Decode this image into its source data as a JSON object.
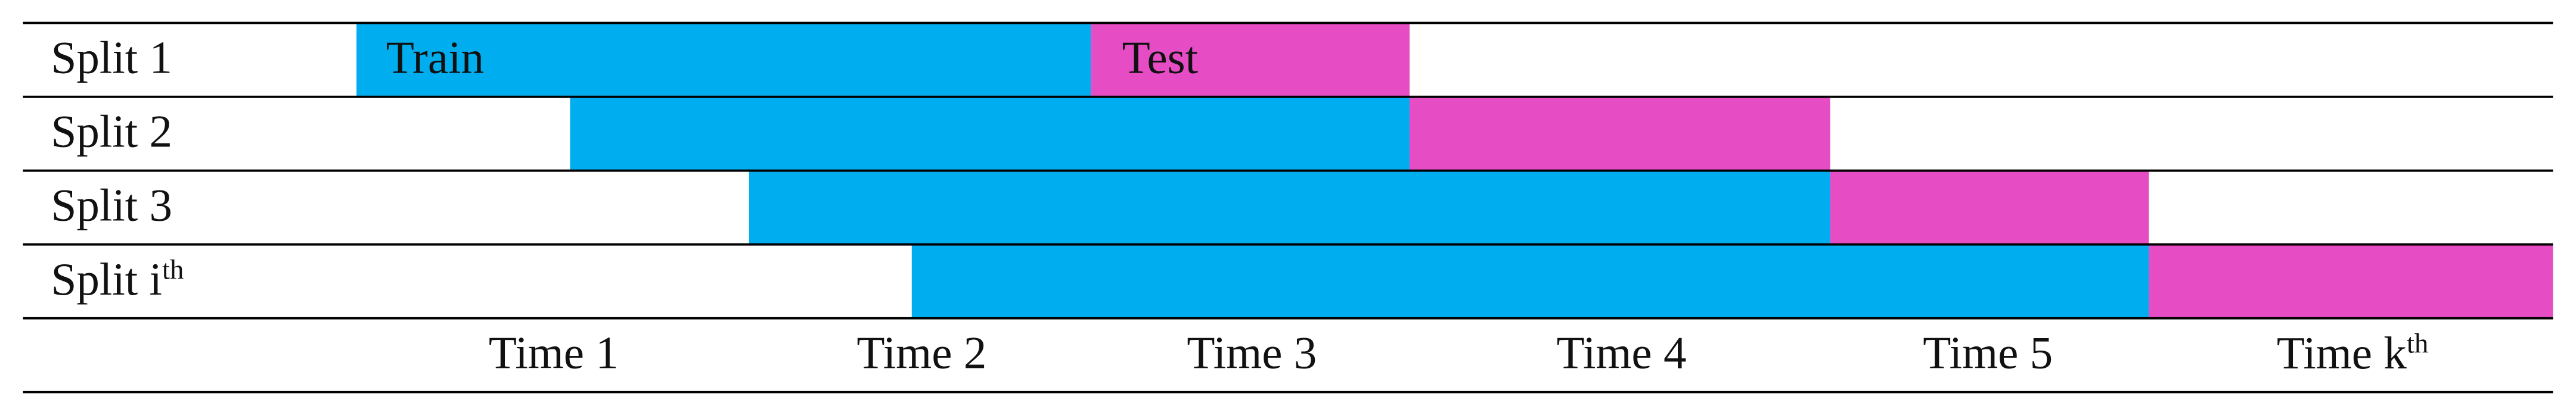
{
  "rows": [
    {
      "label": "Split 1"
    },
    {
      "label": "Split 2"
    },
    {
      "label": "Split 3"
    },
    {
      "label": "Split i",
      "label_sup": "th"
    }
  ],
  "legend": {
    "train": "Train",
    "test": "Test"
  },
  "columns": [
    {
      "label": "Time 1"
    },
    {
      "label": "Time 2"
    },
    {
      "label": "Time 3"
    },
    {
      "label": "Time 4"
    },
    {
      "label": "Time 5"
    },
    {
      "label": "Time k",
      "label_sup": "th"
    }
  ]
}
